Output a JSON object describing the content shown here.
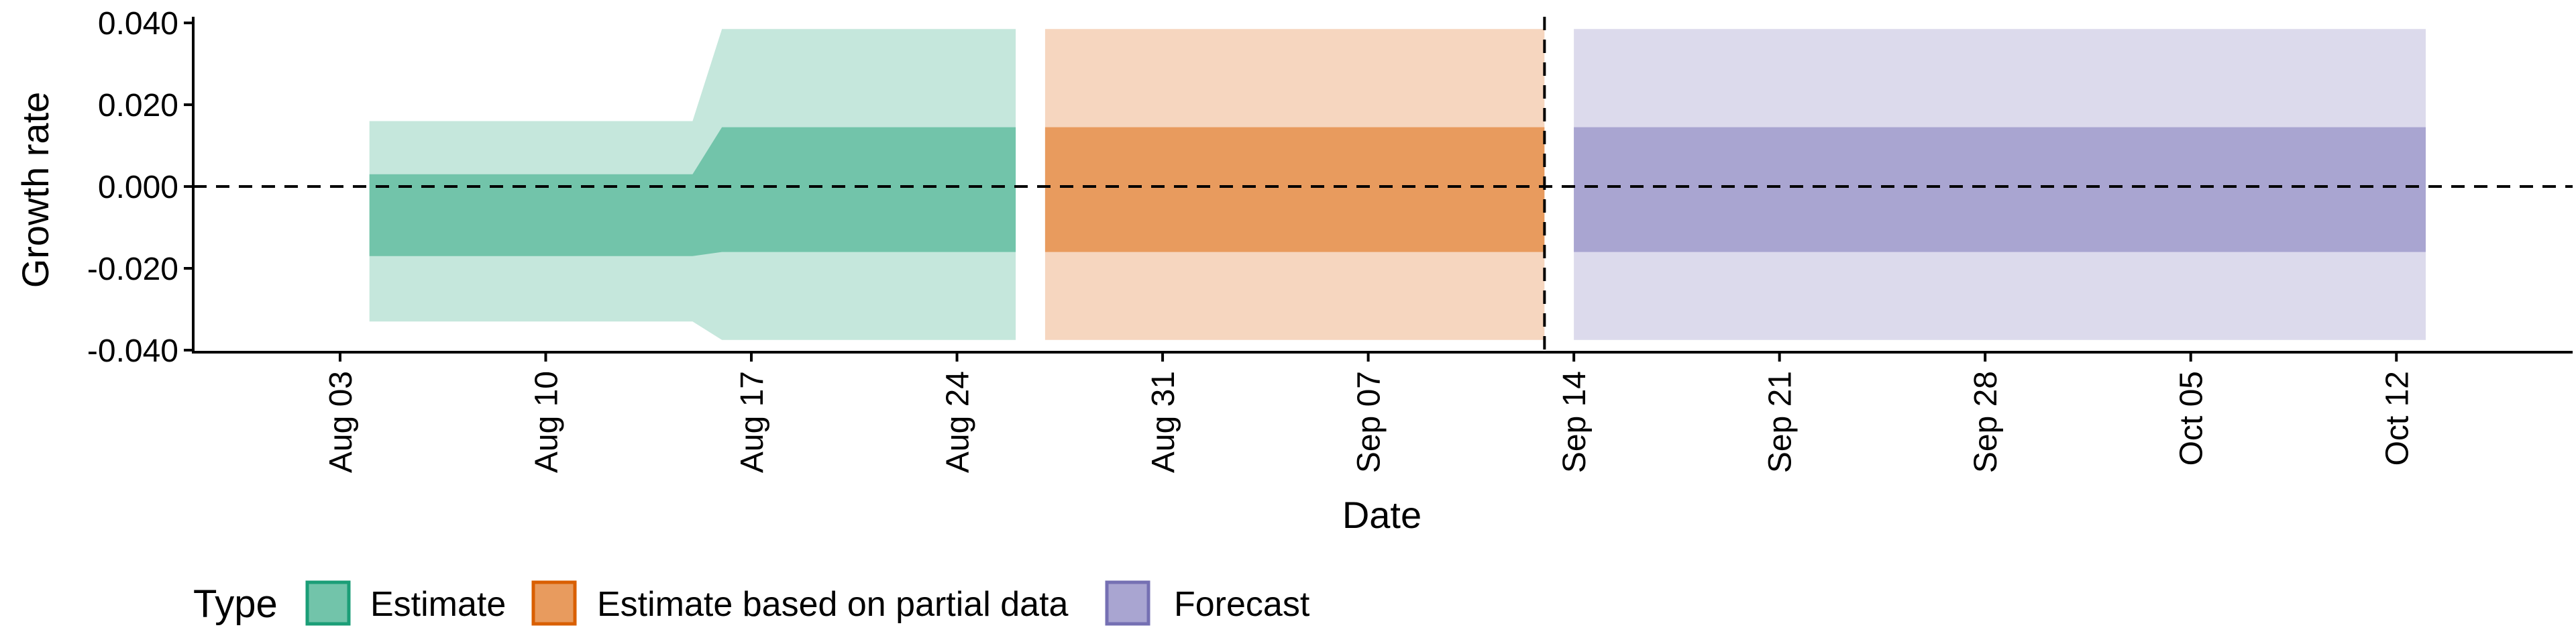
{
  "chart_data": {
    "type": "area",
    "xlabel": "Date",
    "ylabel": "Growth rate",
    "x_ticks": [
      "Aug 03",
      "Aug 10",
      "Aug 17",
      "Aug 24",
      "Aug 31",
      "Sep 07",
      "Sep 14",
      "Sep 21",
      "Sep 28",
      "Oct 05",
      "Oct 12"
    ],
    "y_ticks": [
      "0.040",
      "0.020",
      "0.000",
      "-0.020",
      "-0.040"
    ],
    "y_tick_values": [
      0.04,
      0.02,
      0.0,
      -0.02,
      -0.04
    ],
    "ylim": [
      -0.0405,
      0.0415
    ],
    "xlim": [
      "2020-07-29",
      "2020-10-18"
    ],
    "reference_line_y": 0.0,
    "forecast_date_line": "2020-09-13",
    "grid": false,
    "legend": {
      "title": "Type",
      "position": "bottom-left",
      "entries": [
        {
          "label": "Estimate",
          "color": "#72c4aa"
        },
        {
          "label": "Estimate based on partial data",
          "color": "#e89b5e"
        },
        {
          "label": "Forecast",
          "color": "#a9a5d1"
        }
      ]
    },
    "series": [
      {
        "type_key": "Estimate",
        "color_inner": "#72c4aa",
        "color_outer": "#c5e7dc",
        "points": [
          {
            "date": "2020-08-04",
            "lower90": -0.033,
            "lower50": -0.017,
            "upper50": 0.003,
            "upper90": 0.016
          },
          {
            "date": "2020-08-15",
            "lower90": -0.033,
            "lower50": -0.017,
            "upper50": 0.003,
            "upper90": 0.016
          },
          {
            "date": "2020-08-16",
            "lower90": -0.0375,
            "lower50": -0.016,
            "upper50": 0.0145,
            "upper90": 0.0385
          },
          {
            "date": "2020-08-26",
            "lower90": -0.0375,
            "lower50": -0.016,
            "upper50": 0.0145,
            "upper90": 0.0385
          }
        ]
      },
      {
        "type_key": "Estimate based on partial data",
        "color_inner": "#e89b5e",
        "color_outer": "#f6d6bf",
        "points": [
          {
            "date": "2020-08-27",
            "lower90": -0.0375,
            "lower50": -0.016,
            "upper50": 0.0145,
            "upper90": 0.0385
          },
          {
            "date": "2020-09-13",
            "lower90": -0.0375,
            "lower50": -0.016,
            "upper50": 0.0145,
            "upper90": 0.0385
          }
        ]
      },
      {
        "type_key": "Forecast",
        "color_inner": "#a9a5d1",
        "color_outer": "#dcdaec",
        "points": [
          {
            "date": "2020-09-14",
            "lower90": -0.0375,
            "lower50": -0.016,
            "upper50": 0.0145,
            "upper90": 0.0385
          },
          {
            "date": "2020-10-13",
            "lower90": -0.0375,
            "lower50": -0.016,
            "upper50": 0.0145,
            "upper90": 0.0385
          }
        ]
      }
    ]
  },
  "colors": {
    "estimate_border": "#1b9e77",
    "partial_border": "#d95f02",
    "forecast_border": "#7570b3"
  }
}
